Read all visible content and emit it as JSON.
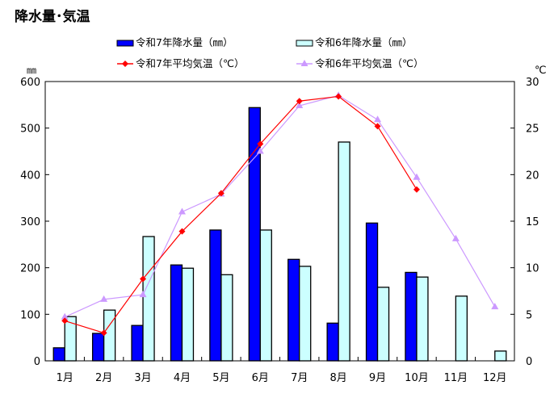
{
  "chart_data": {
    "type": "bar+line",
    "title": "降水量･気温",
    "categories": [
      "1月",
      "2月",
      "3月",
      "4月",
      "5月",
      "6月",
      "7月",
      "8月",
      "9月",
      "10月",
      "11月",
      "12月"
    ],
    "left_axis": {
      "unit": "㎜",
      "ylim": [
        0,
        600
      ],
      "ticks": [
        0,
        100,
        200,
        300,
        400,
        500,
        600
      ]
    },
    "right_axis": {
      "unit": "℃",
      "ylim": [
        0,
        30
      ],
      "ticks": [
        0,
        5,
        10,
        15,
        20,
        25,
        30
      ]
    },
    "legend_position": "top",
    "grid": false,
    "bar_series": [
      {
        "name": "令和7年降水量（㎜）",
        "color": "#0000ff",
        "values": [
          28,
          59,
          76,
          206,
          281,
          544,
          218,
          81,
          296,
          190,
          null,
          null
        ]
      },
      {
        "name": "令和6年降水量（㎜）",
        "color": "#ccffff",
        "values": [
          95,
          109,
          267,
          199,
          185,
          281,
          203,
          470,
          158,
          180,
          139,
          21
        ]
      }
    ],
    "line_series": [
      {
        "name": "令和7年平均気温（℃）",
        "color": "#ff0000",
        "marker": "diamond",
        "values": [
          4.3,
          3.0,
          8.8,
          13.9,
          18.0,
          23.3,
          27.9,
          28.4,
          25.2,
          18.4,
          null,
          null
        ]
      },
      {
        "name": "令和6年平均気温（℃）",
        "color": "#cc99ff",
        "marker": "triangle",
        "values": [
          4.7,
          6.6,
          7.1,
          16.0,
          17.9,
          22.5,
          27.4,
          28.5,
          25.9,
          19.7,
          13.1,
          5.8
        ]
      }
    ]
  }
}
